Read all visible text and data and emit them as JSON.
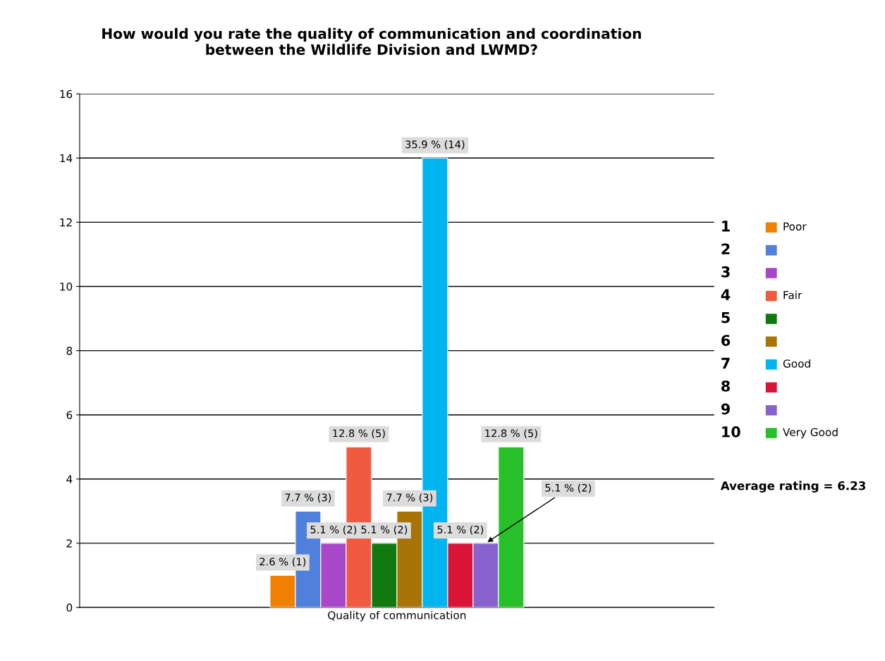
{
  "chart_data": {
    "type": "bar",
    "title": "How would you rate the quality of communication and coordination\nbetween the Wildlife Division and LWMD?",
    "categories": [
      "Quality of communication"
    ],
    "series": [
      {
        "name": "Poor",
        "color": "#f08000",
        "values": [
          1
        ],
        "value_labels": [
          "2.6 % (1)"
        ]
      },
      {
        "color": "#4f80dc",
        "values": [
          3
        ],
        "value_labels": [
          "7.7 % (3)"
        ]
      },
      {
        "color": "#a848c8",
        "values": [
          2
        ],
        "value_labels": [
          "5.1 % (2)"
        ]
      },
      {
        "name": "Fair",
        "color": "#f05a40",
        "values": [
          5
        ],
        "value_labels": [
          "12.8 % (5)"
        ]
      },
      {
        "color": "#107a10",
        "values": [
          2
        ],
        "value_labels": [
          "5.1 % (2)"
        ]
      },
      {
        "color": "#a87408",
        "values": [
          3
        ],
        "value_labels": [
          "7.7 % (3)"
        ]
      },
      {
        "name": "Good",
        "color": "#00b4f0",
        "values": [
          14
        ],
        "value_labels": [
          "35.9 % (14)"
        ]
      },
      {
        "color": "#d81438",
        "values": [
          2
        ],
        "value_labels": [
          "5.1 % (2)"
        ]
      },
      {
        "color": "#8a62d0",
        "values": [
          2
        ],
        "value_labels": [
          "5.1 % (2)"
        ]
      },
      {
        "name": "Very Good",
        "color": "#28c028",
        "values": [
          5
        ],
        "value_labels": [
          "12.8 % (5)"
        ]
      }
    ],
    "ylim": [
      0,
      16
    ],
    "yticks": [
      0,
      2,
      4,
      6,
      8,
      10,
      12,
      14,
      16
    ],
    "grid": "y",
    "legend": "right",
    "annotations": [
      "1",
      "2",
      "3",
      "4",
      "5",
      "6",
      "7",
      "8",
      "9",
      "10",
      "Average rating = 6.23"
    ]
  }
}
